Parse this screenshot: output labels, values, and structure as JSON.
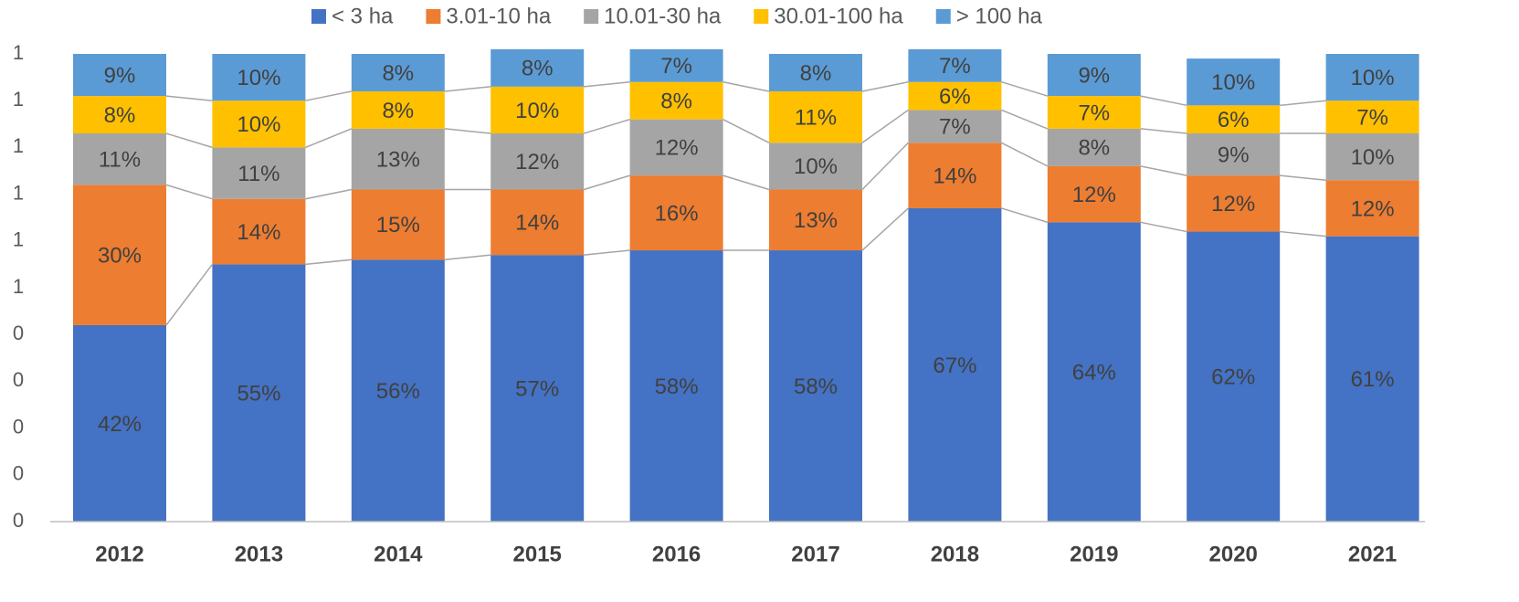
{
  "chart_data": {
    "type": "stacked_bar",
    "categories": [
      "2012",
      "2013",
      "2014",
      "2015",
      "2016",
      "2017",
      "2018",
      "2019",
      "2020",
      "2021"
    ],
    "series": [
      {
        "name": "< 3 ha",
        "color": "#4472c4",
        "values": [
          0.42,
          0.55,
          0.56,
          0.57,
          0.58,
          0.58,
          0.67,
          0.64,
          0.62,
          0.61
        ],
        "value_labels": [
          "42%",
          "55%",
          "56%",
          "57%",
          "58%",
          "58%",
          "67%",
          "64%",
          "62%",
          "61%"
        ]
      },
      {
        "name": "3.01-10 ha",
        "color": "#ed7d31",
        "values": [
          0.3,
          0.14,
          0.15,
          0.14,
          0.16,
          0.13,
          0.14,
          0.12,
          0.12,
          0.12
        ],
        "value_labels": [
          "30%",
          "14%",
          "15%",
          "14%",
          "16%",
          "13%",
          "14%",
          "12%",
          "12%",
          "12%"
        ]
      },
      {
        "name": "10.01-30 ha",
        "color": "#a5a5a5",
        "values": [
          0.11,
          0.11,
          0.13,
          0.12,
          0.12,
          0.1,
          0.07,
          0.08,
          0.09,
          0.1
        ],
        "value_labels": [
          "11%",
          "11%",
          "13%",
          "12%",
          "12%",
          "10%",
          "7%",
          "8%",
          "9%",
          "10%"
        ]
      },
      {
        "name": "30.01-100 ha",
        "color": "#ffc000",
        "values": [
          0.08,
          0.1,
          0.08,
          0.1,
          0.08,
          0.11,
          0.06,
          0.07,
          0.06,
          0.07
        ],
        "value_labels": [
          "8%",
          "10%",
          "8%",
          "10%",
          "8%",
          "11%",
          "6%",
          "7%",
          "6%",
          "7%"
        ]
      },
      {
        "name": "> 100 ha",
        "color": "#5b9bd5",
        "values": [
          0.09,
          0.1,
          0.08,
          0.08,
          0.07,
          0.08,
          0.07,
          0.09,
          0.1,
          0.1
        ],
        "value_labels": [
          "9%",
          "10%",
          "8%",
          "8%",
          "7%",
          "8%",
          "7%",
          "9%",
          "10%",
          "10%"
        ]
      }
    ],
    "ylim": [
      0,
      1
    ],
    "yticks": [
      0,
      {
        "value": 0.1,
        "label": "0"
      },
      {
        "value": 0.2,
        "label": "0"
      },
      {
        "value": 0.3,
        "label": "0"
      },
      {
        "value": 0.4,
        "label": "0"
      },
      {
        "value": 0.5,
        "label": "1"
      },
      {
        "value": 0.6,
        "label": "1"
      },
      {
        "value": 0.7,
        "label": "1"
      },
      {
        "value": 0.8,
        "label": "1"
      },
      {
        "value": 0.9,
        "label": "1"
      },
      1
    ],
    "legend": "top"
  }
}
